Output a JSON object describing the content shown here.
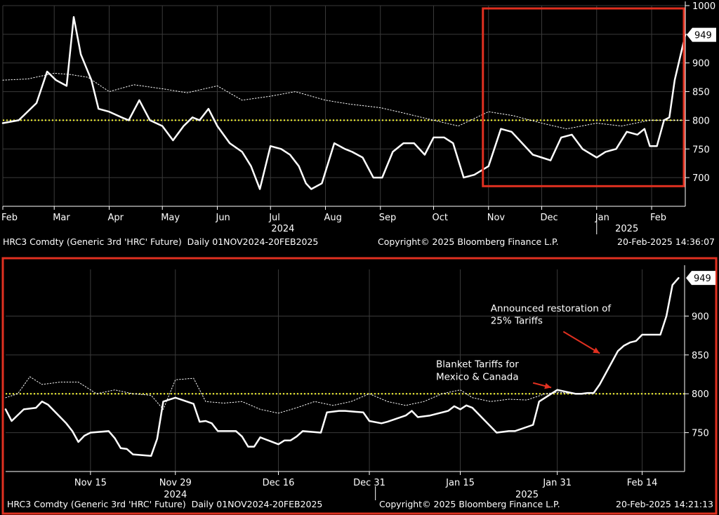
{
  "chart_data": [
    {
      "type": "line",
      "title": "",
      "xlabel": "",
      "ylabel": "",
      "ylim": [
        650,
        1000
      ],
      "y_ticks": [
        700,
        750,
        800,
        850,
        900,
        950,
        1000
      ],
      "y_scale": "linear",
      "grid": true,
      "axis_side": "right",
      "x_range": [
        "2024-02-01",
        "2025-02-20"
      ],
      "x_ticks": [
        {
          "label": "Feb",
          "date": "2024-02-01"
        },
        {
          "label": "Mar",
          "date": "2024-03-01"
        },
        {
          "label": "Apr",
          "date": "2024-04-01"
        },
        {
          "label": "May",
          "date": "2024-05-01"
        },
        {
          "label": "Jun",
          "date": "2024-06-01"
        },
        {
          "label": "Jul",
          "date": "2024-07-01"
        },
        {
          "label": "Aug",
          "date": "2024-08-01"
        },
        {
          "label": "Sep",
          "date": "2024-09-01"
        },
        {
          "label": "Oct",
          "date": "2024-10-01"
        },
        {
          "label": "Nov",
          "date": "2024-11-01"
        },
        {
          "label": "Dec",
          "date": "2024-12-01"
        },
        {
          "label": "Jan",
          "date": "2025-01-01"
        },
        {
          "label": "Feb",
          "date": "2025-02-01"
        }
      ],
      "year_labels": [
        {
          "label": "2024",
          "date": "2024-07-08"
        },
        {
          "label": "2025",
          "date": "2025-01-18"
        }
      ],
      "year_divider_date": "2025-01-01",
      "reference_line": {
        "value": 800,
        "color": "#ffff33",
        "style": "dotted"
      },
      "last_value_label": "949",
      "highlight_box": {
        "x_range": [
          "2024-11-01",
          "2025-02-20"
        ],
        "y_range": [
          690,
          1000
        ],
        "color": "#e03020"
      },
      "series": [
        {
          "style": "solid",
          "color": "#ffffff",
          "x": [
            "2024-02-01",
            "2024-02-10",
            "2024-02-20",
            "2024-02-26",
            "2024-03-02",
            "2024-03-08",
            "2024-03-12",
            "2024-03-16",
            "2024-03-22",
            "2024-03-26",
            "2024-04-01",
            "2024-04-08",
            "2024-04-12",
            "2024-04-18",
            "2024-04-24",
            "2024-05-01",
            "2024-05-07",
            "2024-05-13",
            "2024-05-18",
            "2024-05-22",
            "2024-05-27",
            "2024-06-01",
            "2024-06-08",
            "2024-06-15",
            "2024-06-20",
            "2024-06-25",
            "2024-07-01",
            "2024-07-07",
            "2024-07-12",
            "2024-07-17",
            "2024-07-21",
            "2024-07-24",
            "2024-07-30",
            "2024-08-06",
            "2024-08-12",
            "2024-08-16",
            "2024-08-22",
            "2024-08-28",
            "2024-09-02",
            "2024-09-08",
            "2024-09-14",
            "2024-09-20",
            "2024-09-26",
            "2024-10-01",
            "2024-10-07",
            "2024-10-12",
            "2024-10-18",
            "2024-10-24",
            "2024-11-01",
            "2024-11-08",
            "2024-11-14",
            "2024-11-20",
            "2024-11-26",
            "2024-12-01",
            "2024-12-06",
            "2024-12-12",
            "2024-12-18",
            "2024-12-24",
            "2025-01-01",
            "2025-01-06",
            "2025-01-12",
            "2025-01-18",
            "2025-01-24",
            "2025-01-28",
            "2025-01-31",
            "2025-02-04",
            "2025-02-08",
            "2025-02-11",
            "2025-02-14",
            "2025-02-20"
          ],
          "y": [
            795,
            800,
            830,
            885,
            870,
            860,
            980,
            915,
            870,
            820,
            815,
            805,
            800,
            835,
            800,
            790,
            765,
            790,
            805,
            800,
            820,
            790,
            760,
            745,
            720,
            680,
            755,
            750,
            740,
            720,
            690,
            680,
            690,
            760,
            750,
            745,
            735,
            700,
            700,
            745,
            760,
            760,
            740,
            770,
            770,
            760,
            700,
            705,
            720,
            785,
            780,
            760,
            740,
            735,
            730,
            770,
            775,
            750,
            735,
            745,
            750,
            780,
            775,
            785,
            755,
            755,
            800,
            805,
            870,
            949
          ]
        },
        {
          "style": "dotted",
          "color": "#ffffff",
          "x": [
            "2024-02-01",
            "2024-02-15",
            "2024-03-01",
            "2024-03-10",
            "2024-03-20",
            "2024-04-01",
            "2024-04-15",
            "2024-05-01",
            "2024-05-15",
            "2024-06-01",
            "2024-06-15",
            "2024-07-01",
            "2024-07-15",
            "2024-08-01",
            "2024-08-15",
            "2024-09-01",
            "2024-09-15",
            "2024-10-01",
            "2024-10-15",
            "2024-11-01",
            "2024-11-15",
            "2024-12-01",
            "2024-12-15",
            "2025-01-01",
            "2025-01-15",
            "2025-01-31",
            "2025-02-20"
          ],
          "y": [
            870,
            872,
            882,
            880,
            875,
            850,
            862,
            855,
            848,
            860,
            835,
            842,
            850,
            835,
            828,
            822,
            812,
            800,
            790,
            815,
            808,
            795,
            785,
            795,
            790,
            800,
            800
          ]
        }
      ]
    },
    {
      "type": "line",
      "title": "",
      "xlabel": "",
      "ylabel": "",
      "ylim": [
        700,
        960
      ],
      "y_ticks": [
        750,
        800,
        850,
        900
      ],
      "y_scale": "linear",
      "grid": true,
      "axis_side": "right",
      "x_range": [
        "2024-11-01",
        "2025-02-21"
      ],
      "x_ticks": [
        {
          "label": "Nov 15",
          "date": "2024-11-15"
        },
        {
          "label": "Nov 29",
          "date": "2024-11-29"
        },
        {
          "label": "Dec 16",
          "date": "2024-12-16"
        },
        {
          "label": "Dec 31",
          "date": "2024-12-31"
        },
        {
          "label": "Jan 15",
          "date": "2025-01-15"
        },
        {
          "label": "Jan 31",
          "date": "2025-01-31"
        },
        {
          "label": "Feb 14",
          "date": "2025-02-14"
        }
      ],
      "year_labels": [
        {
          "label": "2024",
          "date": "2024-11-29"
        },
        {
          "label": "2025",
          "date": "2025-01-26"
        }
      ],
      "year_divider_date": "2025-01-01",
      "reference_line": {
        "value": 800,
        "color": "#ffff33",
        "style": "dotted"
      },
      "last_value_label": "949",
      "annotations": [
        {
          "text": "Blanket Tariffs for",
          "date": "2025-01-11",
          "value": 834
        },
        {
          "text": "Mexico & Canada",
          "date": "2025-01-11",
          "value": 818
        },
        {
          "text": "Announced restoration of",
          "date": "2025-01-20",
          "value": 906
        },
        {
          "text": "25% Tariffs",
          "date": "2025-01-20",
          "value": 890
        }
      ],
      "arrows": [
        {
          "from_date": "2025-01-27",
          "from_value": 814,
          "to_date": "2025-01-30",
          "to_value": 808
        },
        {
          "from_date": "2025-02-01",
          "from_value": 880,
          "to_date": "2025-02-07",
          "to_value": 852
        }
      ],
      "series": [
        {
          "style": "solid",
          "color": "#ffffff",
          "x": [
            "2024-11-01",
            "2024-11-02",
            "2024-11-04",
            "2024-11-06",
            "2024-11-07",
            "2024-11-08",
            "2024-11-11",
            "2024-11-12",
            "2024-11-13",
            "2024-11-14",
            "2024-11-15",
            "2024-11-18",
            "2024-11-19",
            "2024-11-20",
            "2024-11-21",
            "2024-11-22",
            "2024-11-25",
            "2024-11-26",
            "2024-11-27",
            "2024-11-29",
            "2024-12-02",
            "2024-12-03",
            "2024-12-04",
            "2024-12-05",
            "2024-12-06",
            "2024-12-09",
            "2024-12-10",
            "2024-12-11",
            "2024-12-12",
            "2024-12-13",
            "2024-12-16",
            "2024-12-17",
            "2024-12-18",
            "2024-12-19",
            "2024-12-20",
            "2024-12-23",
            "2024-12-24",
            "2024-12-26",
            "2024-12-27",
            "2024-12-30",
            "2024-12-31",
            "2025-01-02",
            "2025-01-03",
            "2025-01-06",
            "2025-01-07",
            "2025-01-08",
            "2025-01-10",
            "2025-01-13",
            "2025-01-14",
            "2025-01-15",
            "2025-01-16",
            "2025-01-17",
            "2025-01-21",
            "2025-01-22",
            "2025-01-23",
            "2025-01-24",
            "2025-01-27",
            "2025-01-28",
            "2025-01-29",
            "2025-01-30",
            "2025-01-31",
            "2025-02-03",
            "2025-02-04",
            "2025-02-05",
            "2025-02-06",
            "2025-02-07",
            "2025-02-10",
            "2025-02-11",
            "2025-02-12",
            "2025-02-13",
            "2025-02-14",
            "2025-02-17",
            "2025-02-18",
            "2025-02-19",
            "2025-02-20"
          ],
          "y": [
            780,
            765,
            780,
            782,
            790,
            786,
            762,
            752,
            738,
            746,
            750,
            752,
            743,
            730,
            729,
            722,
            720,
            742,
            790,
            795,
            787,
            764,
            765,
            762,
            752,
            752,
            745,
            732,
            732,
            744,
            735,
            740,
            740,
            745,
            752,
            750,
            776,
            778,
            778,
            776,
            765,
            762,
            764,
            772,
            778,
            770,
            772,
            778,
            784,
            780,
            785,
            782,
            750,
            751,
            752,
            752,
            760,
            790,
            795,
            800,
            805,
            800,
            800,
            801,
            801,
            812,
            855,
            862,
            866,
            868,
            876,
            876,
            900,
            940,
            949
          ]
        },
        {
          "style": "dotted",
          "color": "#ffffff",
          "x": [
            "2024-11-01",
            "2024-11-03",
            "2024-11-05",
            "2024-11-07",
            "2024-11-10",
            "2024-11-13",
            "2024-11-16",
            "2024-11-19",
            "2024-11-22",
            "2024-11-25",
            "2024-11-27",
            "2024-11-29",
            "2024-12-02",
            "2024-12-04",
            "2024-12-07",
            "2024-12-10",
            "2024-12-13",
            "2024-12-16",
            "2024-12-19",
            "2024-12-22",
            "2024-12-25",
            "2024-12-28",
            "2024-12-31",
            "2025-01-03",
            "2025-01-06",
            "2025-01-09",
            "2025-01-12",
            "2025-01-15",
            "2025-01-17",
            "2025-01-20",
            "2025-01-23",
            "2025-01-26",
            "2025-01-29",
            "2025-01-31",
            "2025-02-03",
            "2025-02-06"
          ],
          "y": [
            795,
            800,
            822,
            812,
            815,
            815,
            800,
            805,
            800,
            798,
            780,
            818,
            820,
            790,
            788,
            790,
            780,
            775,
            782,
            790,
            785,
            790,
            800,
            790,
            785,
            790,
            800,
            805,
            795,
            790,
            793,
            792,
            800,
            802,
            800,
            801
          ]
        }
      ]
    }
  ],
  "top_footer": {
    "left": "HRC3 Comdty (Generic 3rd 'HRC' Future)  Daily 01NOV2024-20FEB2025",
    "center": "Copyright© 2025 Bloomberg Finance L.P.",
    "right": "20-Feb-2025 14:36:07"
  },
  "bottom_footer": {
    "left": "HRC3 Comdty (Generic 3rd 'HRC' Future)  Daily 01NOV2024-20FEB2025",
    "center": "Copyright© 2025 Bloomberg Finance L.P.",
    "right": "20-Feb-2025 14:21:13"
  },
  "colors": {
    "background": "#000000",
    "line": "#ffffff",
    "grid": "#3a3a3a",
    "reference": "#ffff33",
    "frame": "#e03020",
    "arrow": "#e03020"
  }
}
